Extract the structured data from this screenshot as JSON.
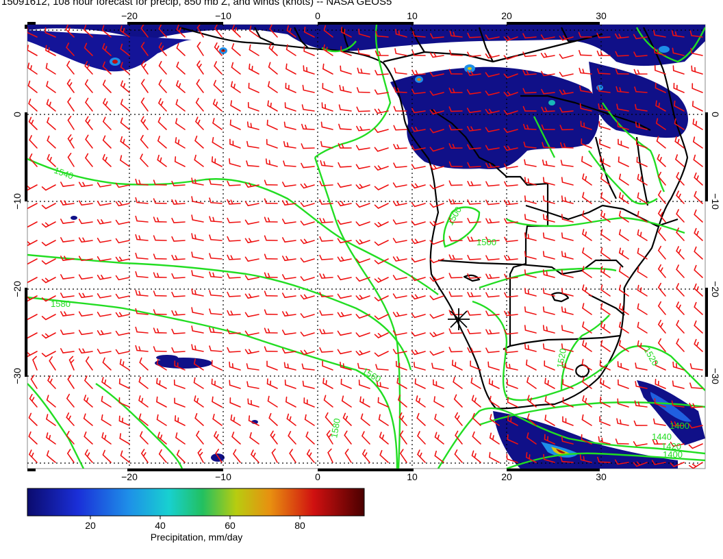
{
  "title": "15091612, 108 hour forecast for precip, 850 mb Z, and winds (knots) -- NASA GEOS5",
  "map": {
    "lon_range": [
      -30,
      42
    ],
    "lat_range": [
      -40,
      10
    ],
    "lon_ticks": [
      "−20",
      "−10",
      "0",
      "10",
      "20",
      "30"
    ],
    "lat_ticks_left": [
      "0",
      "−10",
      "−20",
      "−30"
    ],
    "lat_ticks_right": [
      "0",
      "−10",
      "−20",
      "−30"
    ],
    "grid_lines": "dotted",
    "layers": [
      "precipitation shading",
      "850 mb geopotential height contours",
      "wind barbs",
      "coastlines and borders"
    ],
    "colors": {
      "contour": "#22dd22",
      "wind_barb": "#ee1111",
      "coast": "#000000",
      "precip_low": "#101090",
      "precip_high": "#550000"
    },
    "contour_labels": [
      "1540",
      "1580",
      "1560",
      "1580",
      "1500",
      "1500",
      "1520",
      "1520",
      "1440",
      "1420",
      "1400",
      "1400"
    ],
    "marker": "station-star"
  },
  "colorbar": {
    "label": "Precipitation, mm/day",
    "ticks": [
      "20",
      "40",
      "60",
      "80"
    ],
    "range": [
      0,
      100
    ]
  }
}
